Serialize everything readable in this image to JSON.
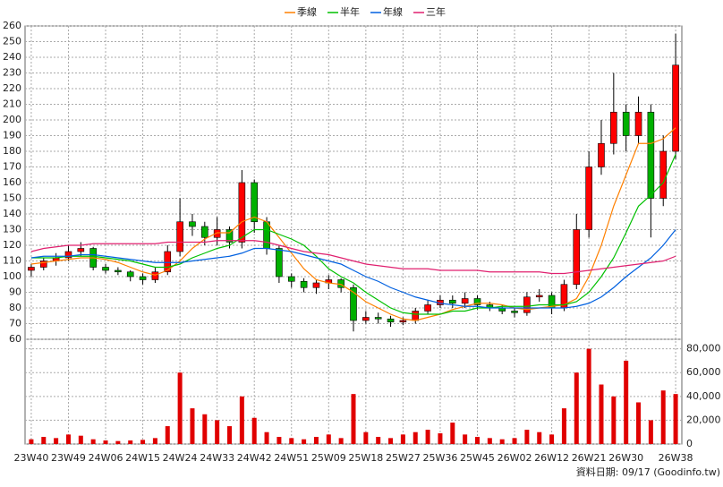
{
  "chart_data": {
    "type": "candlestick",
    "categories": [
      "23W40",
      null,
      null,
      "23W49",
      null,
      null,
      "24W06",
      null,
      null,
      "24W15",
      null,
      null,
      "24W24",
      null,
      null,
      "24W33",
      null,
      null,
      "24W42",
      null,
      null,
      "24W51",
      null,
      null,
      "25W09",
      null,
      null,
      "25W18",
      null,
      null,
      "25W27",
      null,
      null,
      "25W36",
      null,
      null,
      "25W45",
      null,
      null,
      "26W02",
      null,
      null,
      "26W12",
      null,
      null,
      "26W21",
      null,
      null,
      "26W30",
      null,
      null,
      null,
      "26W38"
    ],
    "open": [
      104,
      106,
      110,
      112,
      116,
      118,
      106,
      104,
      103,
      100,
      98,
      103,
      116,
      135,
      132,
      125,
      130,
      122,
      160,
      135,
      118,
      100,
      97,
      93,
      96,
      98,
      93,
      72,
      74,
      73,
      71,
      72,
      78,
      82,
      85,
      83,
      86,
      82,
      80,
      78,
      77,
      87,
      88,
      80,
      95,
      130,
      170,
      185,
      205,
      190,
      205,
      150,
      180
    ],
    "high": [
      108,
      112,
      115,
      120,
      122,
      119,
      108,
      106,
      104,
      102,
      106,
      120,
      150,
      140,
      135,
      138,
      132,
      168,
      162,
      138,
      120,
      102,
      99,
      98,
      101,
      99,
      95,
      78,
      77,
      75,
      74,
      80,
      85,
      88,
      88,
      90,
      88,
      84,
      82,
      80,
      90,
      92,
      90,
      98,
      140,
      180,
      200,
      230,
      210,
      215,
      210,
      190,
      255
    ],
    "low": [
      100,
      104,
      107,
      110,
      113,
      104,
      102,
      101,
      97,
      95,
      96,
      101,
      113,
      126,
      120,
      120,
      118,
      118,
      128,
      114,
      96,
      93,
      90,
      89,
      92,
      90,
      65,
      70,
      70,
      68,
      69,
      70,
      76,
      80,
      80,
      80,
      79,
      78,
      76,
      74,
      75,
      84,
      76,
      78,
      92,
      125,
      165,
      178,
      180,
      185,
      125,
      145,
      175
    ],
    "close": [
      106,
      110,
      112,
      116,
      118,
      106,
      104,
      103,
      100,
      98,
      103,
      116,
      135,
      132,
      125,
      130,
      122,
      160,
      135,
      118,
      100,
      97,
      93,
      96,
      98,
      93,
      72,
      74,
      73,
      71,
      72,
      78,
      82,
      85,
      83,
      86,
      82,
      80,
      78,
      77,
      87,
      88,
      80,
      95,
      130,
      170,
      185,
      205,
      190,
      205,
      150,
      180,
      235
    ],
    "up_color": "#ff0000",
    "down_color": "#00b000",
    "series": [
      {
        "name": "季線",
        "color": "#ff8000",
        "values": [
          108,
          109,
          110,
          111,
          112,
          112,
          111,
          109,
          106,
          103,
          101,
          104,
          110,
          118,
          124,
          128,
          128,
          135,
          138,
          135,
          125,
          115,
          105,
          98,
          96,
          95,
          90,
          84,
          80,
          76,
          73,
          72,
          74,
          76,
          79,
          81,
          83,
          83,
          82,
          80,
          79,
          80,
          81,
          82,
          86,
          100,
          120,
          145,
          165,
          185,
          185,
          188,
          195
        ]
      },
      {
        "name": "半年",
        "color": "#00c000",
        "values": [
          112,
          112,
          112,
          113,
          113,
          113,
          112,
          111,
          110,
          108,
          106,
          106,
          108,
          112,
          115,
          118,
          120,
          125,
          130,
          130,
          127,
          124,
          120,
          113,
          105,
          100,
          96,
          90,
          85,
          80,
          77,
          76,
          76,
          76,
          78,
          78,
          80,
          80,
          81,
          81,
          81,
          82,
          82,
          82,
          84,
          90,
          100,
          112,
          128,
          145,
          152,
          160,
          178
        ]
      },
      {
        "name": "年線",
        "color": "#0060e0",
        "values": [
          112,
          113,
          113,
          113,
          114,
          114,
          113,
          112,
          111,
          110,
          109,
          109,
          109,
          110,
          111,
          112,
          113,
          115,
          118,
          118,
          117,
          116,
          114,
          112,
          110,
          108,
          104,
          100,
          97,
          93,
          90,
          87,
          85,
          83,
          82,
          81,
          81,
          80,
          80,
          80,
          80,
          80,
          80,
          80,
          81,
          83,
          87,
          93,
          100,
          106,
          112,
          120,
          130
        ]
      },
      {
        "name": "三年",
        "color": "#e0206f",
        "values": [
          116,
          118,
          119,
          120,
          120,
          121,
          121,
          121,
          121,
          121,
          121,
          122,
          122,
          122,
          122,
          123,
          123,
          123,
          123,
          122,
          120,
          118,
          116,
          115,
          114,
          112,
          110,
          108,
          107,
          106,
          105,
          105,
          105,
          104,
          104,
          104,
          104,
          103,
          103,
          103,
          103,
          103,
          102,
          102,
          103,
          104,
          105,
          106,
          107,
          108,
          109,
          110,
          113
        ]
      }
    ],
    "volume": {
      "color": "#e00000",
      "axis": "y2",
      "values": [
        4000,
        6000,
        5000,
        8000,
        7000,
        4000,
        3000,
        2500,
        3000,
        3500,
        5000,
        15000,
        60000,
        30000,
        25000,
        20000,
        15000,
        40000,
        22000,
        10000,
        6000,
        5000,
        4000,
        6000,
        8000,
        5000,
        42000,
        10000,
        6000,
        5000,
        8000,
        10000,
        12000,
        9000,
        18000,
        8000,
        6000,
        5000,
        4000,
        5000,
        12000,
        10000,
        8000,
        30000,
        60000,
        80000,
        50000,
        40000,
        70000,
        35000,
        20000,
        45000,
        42000
      ]
    },
    "ylim": [
      60,
      260
    ],
    "yticks": [
      60,
      70,
      80,
      90,
      100,
      110,
      120,
      130,
      140,
      150,
      160,
      170,
      180,
      190,
      200,
      210,
      220,
      230,
      240,
      250,
      260
    ],
    "y2lim": [
      0,
      88000
    ],
    "y2ticks": [
      0,
      {
        "value": 20000,
        "label": "20,000"
      },
      {
        "value": 40000,
        "label": "40,000"
      },
      {
        "value": 60000,
        "label": "60,000"
      },
      {
        "value": 80000,
        "label": "80,000"
      }
    ],
    "grid": true,
    "footer": "資料日期: 09/17 (Goodinfo.tw)"
  }
}
